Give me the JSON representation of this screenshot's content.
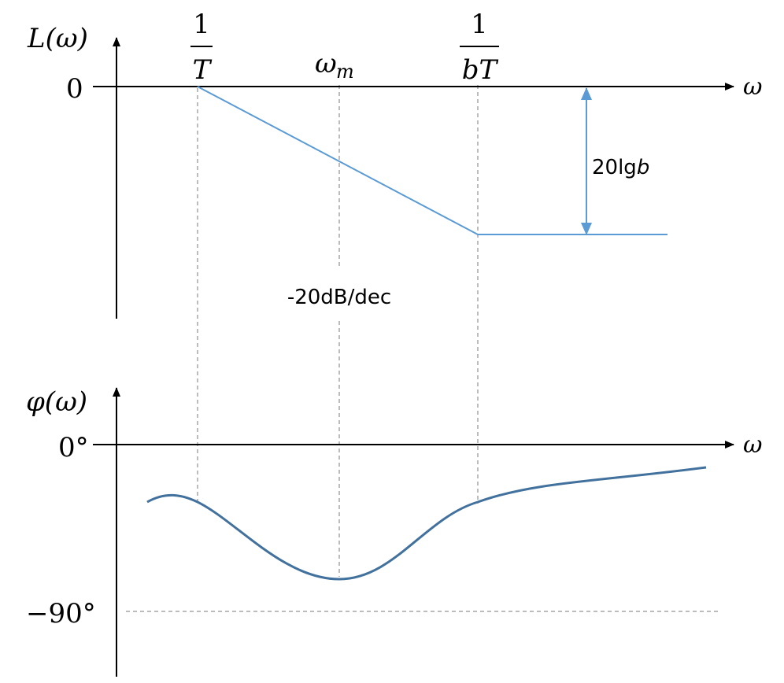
{
  "colors": {
    "axis": "#000000",
    "guide": "#a6a6a6",
    "magnitude": "#5b9bd5",
    "phase": "#41719c",
    "arrow": "#5b9bd5"
  },
  "magnitude_plot": {
    "ylabel": "L(ω)",
    "xlabel": "ω",
    "zero_tick": "0",
    "break1": {
      "numerator": "1",
      "denominator": "T"
    },
    "center_label": "ω",
    "center_sub": "m",
    "break2": {
      "numerator": "1",
      "denominator": "bT"
    },
    "slope_label": "-20dB/dec",
    "gap_label_prefix": "20lg",
    "gap_label_var": "b"
  },
  "phase_plot": {
    "ylabel": "φ(ω)",
    "xlabel": "ω",
    "zero_tick": "0°",
    "min_tick": "−90°"
  },
  "icons": [
    "axis-arrow-icon",
    "double-arrow-icon"
  ]
}
